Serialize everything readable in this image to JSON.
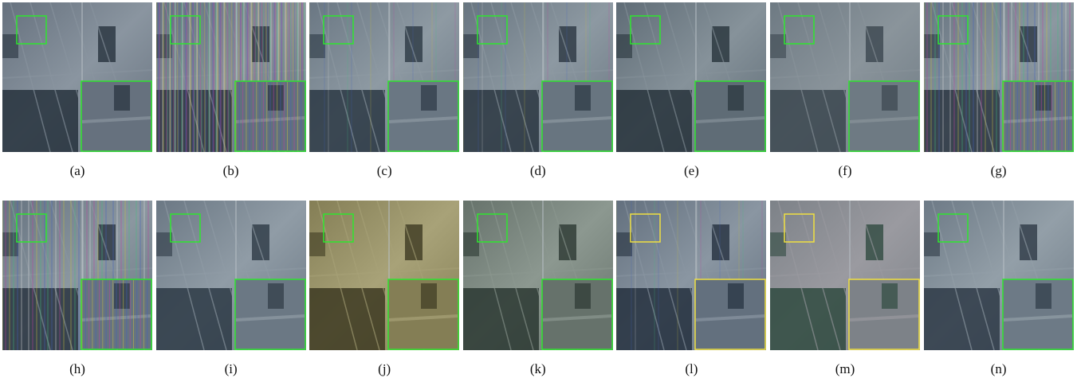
{
  "figure": {
    "panels": [
      {
        "label": "(a)",
        "box_color": "#2ee62e"
      },
      {
        "label": "(b)",
        "box_color": "#2ee62e"
      },
      {
        "label": "(c)",
        "box_color": "#2ee62e"
      },
      {
        "label": "(d)",
        "box_color": "#2ee62e"
      },
      {
        "label": "(e)",
        "box_color": "#2ee62e"
      },
      {
        "label": "(f)",
        "box_color": "#2ee62e"
      },
      {
        "label": "(g)",
        "box_color": "#2ee62e"
      },
      {
        "label": "(h)",
        "box_color": "#2ee62e"
      },
      {
        "label": "(i)",
        "box_color": "#2ee62e"
      },
      {
        "label": "(j)",
        "box_color": "#2ee62e"
      },
      {
        "label": "(k)",
        "box_color": "#2ee62e"
      },
      {
        "label": "(l)",
        "box_color": "#f0e040"
      },
      {
        "label": "(m)",
        "box_color": "#f0e040"
      },
      {
        "label": "(n)",
        "box_color": "#2ee62e"
      }
    ]
  }
}
